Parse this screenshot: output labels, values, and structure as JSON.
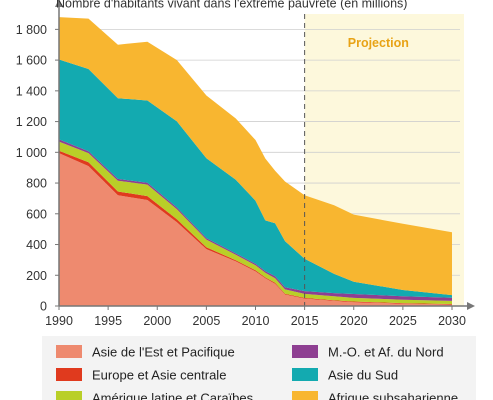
{
  "chart_data": {
    "type": "area",
    "title": "Nombre d'habitants vivant dans l'extrême pauvreté (en millions)",
    "xlabel": "",
    "ylabel": "",
    "xlim": [
      1990,
      2030
    ],
    "ylim": [
      0,
      1900
    ],
    "x_ticks": [
      "1990",
      "1995",
      "2000",
      "2005",
      "2010",
      "2015",
      "2020",
      "2025",
      "2030"
    ],
    "y_ticks": [
      "0",
      "200",
      "400",
      "600",
      "800",
      "1 000",
      "1 200",
      "1 400",
      "1 600",
      "1 800"
    ],
    "projection": {
      "label": "Projection",
      "from": 2015,
      "to": 2030
    },
    "stacked": true,
    "series": [
      {
        "name": "Asie de l'Est et Pacifique",
        "color": "#ee8a6f",
        "points": [
          [
            1990,
            995
          ],
          [
            1993,
            910
          ],
          [
            1996,
            720
          ],
          [
            1999,
            690
          ],
          [
            2002,
            545
          ],
          [
            2005,
            370
          ],
          [
            2008,
            290
          ],
          [
            2010,
            225
          ],
          [
            2011,
            180
          ],
          [
            2012,
            145
          ],
          [
            2013,
            75
          ],
          [
            2015,
            48
          ],
          [
            2018,
            33
          ],
          [
            2020,
            25
          ],
          [
            2025,
            15
          ],
          [
            2030,
            10
          ]
        ]
      },
      {
        "name": "Europe et Asie centrale",
        "color": "#e03a1e",
        "points": [
          [
            1990,
            15
          ],
          [
            1993,
            25
          ],
          [
            1996,
            25
          ],
          [
            1999,
            25
          ],
          [
            2002,
            20
          ],
          [
            2005,
            12
          ],
          [
            2008,
            8
          ],
          [
            2010,
            7
          ],
          [
            2011,
            6
          ],
          [
            2012,
            6
          ],
          [
            2013,
            5
          ],
          [
            2015,
            5
          ],
          [
            2018,
            5
          ],
          [
            2020,
            4
          ],
          [
            2025,
            4
          ],
          [
            2030,
            3
          ]
        ]
      },
      {
        "name": "Amérique latine et Caraïbes",
        "color": "#b9cf28",
        "points": [
          [
            1990,
            60
          ],
          [
            1993,
            60
          ],
          [
            1996,
            70
          ],
          [
            1999,
            75
          ],
          [
            2002,
            65
          ],
          [
            2005,
            50
          ],
          [
            2008,
            35
          ],
          [
            2010,
            33
          ],
          [
            2011,
            31
          ],
          [
            2012,
            30
          ],
          [
            2013,
            28
          ],
          [
            2015,
            26
          ],
          [
            2018,
            25
          ],
          [
            2020,
            24
          ],
          [
            2025,
            22
          ],
          [
            2030,
            20
          ]
        ]
      },
      {
        "name": "M.-O. et Af. du Nord",
        "color": "#8e3f92",
        "points": [
          [
            1990,
            14
          ],
          [
            1993,
            12
          ],
          [
            1996,
            12
          ],
          [
            1999,
            12
          ],
          [
            2002,
            11
          ],
          [
            2005,
            10
          ],
          [
            2008,
            9
          ],
          [
            2010,
            10
          ],
          [
            2011,
            10
          ],
          [
            2012,
            12
          ],
          [
            2013,
            14
          ],
          [
            2015,
            18
          ],
          [
            2018,
            21
          ],
          [
            2020,
            25
          ],
          [
            2025,
            23
          ],
          [
            2030,
            21
          ]
        ]
      },
      {
        "name": "Asie du Sud",
        "color": "#13aab0",
        "points": [
          [
            1990,
            520
          ],
          [
            1993,
            535
          ],
          [
            1996,
            525
          ],
          [
            1999,
            535
          ],
          [
            2002,
            560
          ],
          [
            2005,
            520
          ],
          [
            2008,
            480
          ],
          [
            2010,
            410
          ],
          [
            2011,
            330
          ],
          [
            2012,
            345
          ],
          [
            2013,
            300
          ],
          [
            2015,
            210
          ],
          [
            2018,
            125
          ],
          [
            2020,
            80
          ],
          [
            2025,
            40
          ],
          [
            2030,
            17
          ]
        ]
      },
      {
        "name": "Afrique subsaharienne",
        "color": "#f8b630",
        "points": [
          [
            1990,
            276
          ],
          [
            1993,
            328
          ],
          [
            1996,
            348
          ],
          [
            1999,
            383
          ],
          [
            2002,
            399
          ],
          [
            2005,
            408
          ],
          [
            2008,
            398
          ],
          [
            2010,
            395
          ],
          [
            2011,
            403
          ],
          [
            2012,
            342
          ],
          [
            2013,
            388
          ],
          [
            2015,
            413
          ],
          [
            2018,
            446
          ],
          [
            2020,
            437
          ],
          [
            2025,
            431
          ],
          [
            2030,
            409
          ]
        ]
      }
    ],
    "legend": {
      "position": "bottom",
      "items": [
        {
          "name": "Asie de l'Est et Pacifique",
          "color": "#ee8a6f"
        },
        {
          "name": "M.-O. et Af. du Nord",
          "color": "#8e3f92"
        },
        {
          "name": "Europe et Asie centrale",
          "color": "#e03a1e"
        },
        {
          "name": "Asie du Sud",
          "color": "#13aab0"
        },
        {
          "name": "Amérique latine et Caraïbes",
          "color": "#b9cf28"
        },
        {
          "name": "Afrique subsaharienne",
          "color": "#f8b630"
        }
      ]
    },
    "colors": {
      "projection_band": "#fdf8dc",
      "projection_text": "#e8a316",
      "grid": "#cfcfcf",
      "axis": "#777777",
      "legend_bg": "#f3f3f3"
    }
  }
}
